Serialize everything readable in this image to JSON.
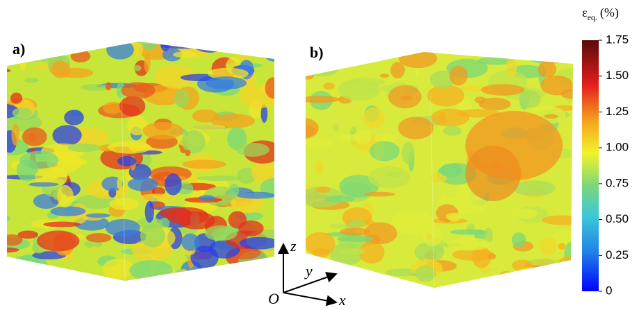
{
  "panels": [
    {
      "label": "a)"
    },
    {
      "label": "b)"
    }
  ],
  "colorbar": {
    "symbol": "ε",
    "subscript": "eq.",
    "unit": "(%)",
    "lim": [
      0,
      1.75
    ],
    "ticks": [
      0,
      {
        "value": 0.25,
        "label": "0.25"
      },
      {
        "value": 0.5,
        "label": "0.50"
      },
      {
        "value": 0.75,
        "label": "0.75"
      },
      {
        "value": 1,
        "label": "1.00"
      },
      {
        "value": 1.25,
        "label": "1.25"
      },
      {
        "value": 1.5,
        "label": "1.50"
      },
      {
        "value": 1.75,
        "label": "1.75"
      }
    ]
  },
  "axes": {
    "origin": "O",
    "x": "x",
    "y": "y",
    "z": "z"
  }
}
